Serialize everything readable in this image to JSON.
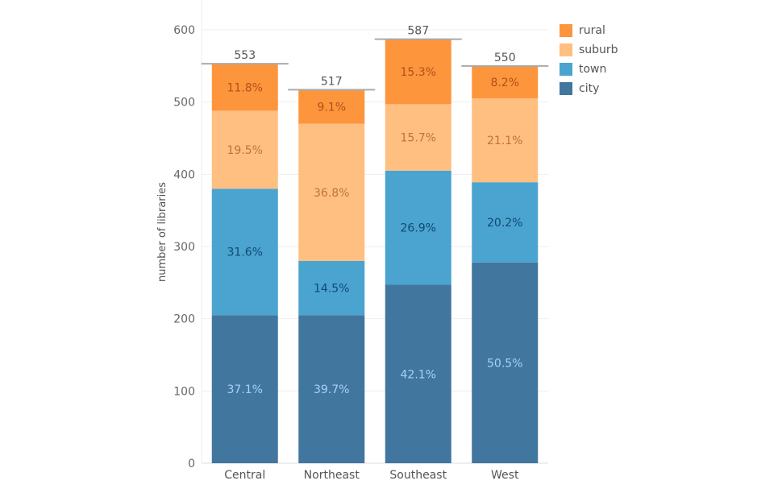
{
  "chart_data": {
    "type": "stacked-bar",
    "title": "",
    "xlabel": "",
    "ylabel": "number of libraries",
    "ylim": [
      0,
      600
    ],
    "yticks": [
      0,
      100,
      200,
      300,
      400,
      500,
      600
    ],
    "grid": true,
    "legend_position": "top-right",
    "categories": [
      "Central",
      "Northeast",
      "Southeast",
      "West"
    ],
    "totals": [
      553,
      517,
      587,
      550
    ],
    "series": [
      {
        "name": "city",
        "color": "#41769f",
        "label_color": "#a8d0ff",
        "values": [
          205,
          205,
          247,
          278
        ],
        "percent_labels": [
          "37.1%",
          "39.7%",
          "42.1%",
          "50.5%"
        ]
      },
      {
        "name": "town",
        "color": "#4ba3cf",
        "label_color": "#0e4a73",
        "values": [
          175,
          75,
          158,
          111
        ],
        "percent_labels": [
          "31.6%",
          "14.5%",
          "26.9%",
          "20.2%"
        ]
      },
      {
        "name": "suburb",
        "color": "#ffbf80",
        "label_color": "#c0733a",
        "values": [
          108,
          190,
          92,
          116
        ],
        "percent_labels": [
          "19.5%",
          "36.8%",
          "15.7%",
          "21.1%"
        ]
      },
      {
        "name": "rural",
        "color": "#fd953d",
        "label_color": "#b0511c",
        "values": [
          65,
          47,
          90,
          45
        ],
        "percent_labels": [
          "11.8%",
          "9.1%",
          "15.3%",
          "8.2%"
        ]
      }
    ]
  }
}
